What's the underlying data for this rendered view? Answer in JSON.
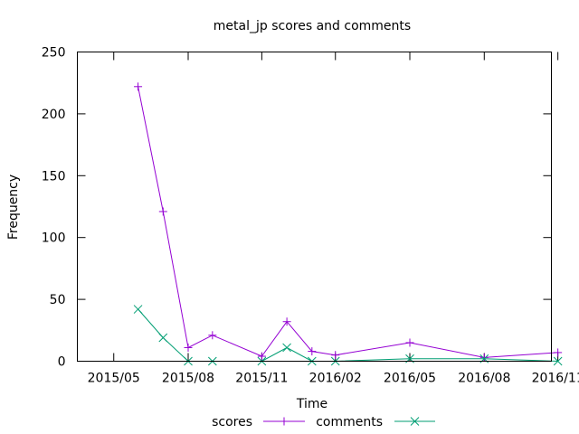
{
  "chart_data": {
    "type": "line",
    "title": "metal_jp scores and comments",
    "xlabel": "Time",
    "ylabel": "Frequency",
    "ylim": [
      0,
      250
    ],
    "yticks": [
      0,
      50,
      100,
      150,
      200,
      250
    ],
    "xlim": [
      "2015-04-16",
      "2016-11-22"
    ],
    "xticks": [
      {
        "date": "2015-05-31",
        "label": "2015/05"
      },
      {
        "date": "2015-08-31",
        "label": "2015/08"
      },
      {
        "date": "2015-11-30",
        "label": "2015/11"
      },
      {
        "date": "2016-02-29",
        "label": "2016/02"
      },
      {
        "date": "2016-05-31",
        "label": "2016/05"
      },
      {
        "date": "2016-08-31",
        "label": "2016/08"
      },
      {
        "date": "2016-11-30",
        "label": "2016/11"
      }
    ],
    "x": [
      "2015-06-30",
      "2015-07-31",
      "2015-08-31",
      "2015-09-30",
      "2015-11-30",
      "2015-12-31",
      "2016-01-31",
      "2016-02-29",
      "2016-05-31",
      "2016-08-31",
      "2016-11-30"
    ],
    "series": [
      {
        "name": "scores",
        "color": "#9400d3",
        "marker": "plus",
        "values": [
          222,
          121,
          11,
          21,
          4,
          32,
          8,
          5,
          15,
          3,
          7
        ]
      },
      {
        "name": "comments",
        "color": "#009e73",
        "marker": "cross",
        "values": [
          42,
          19,
          0,
          0,
          0,
          11,
          0,
          0,
          2,
          2,
          0
        ]
      }
    ],
    "grid": false,
    "legend": "bottom-center"
  }
}
